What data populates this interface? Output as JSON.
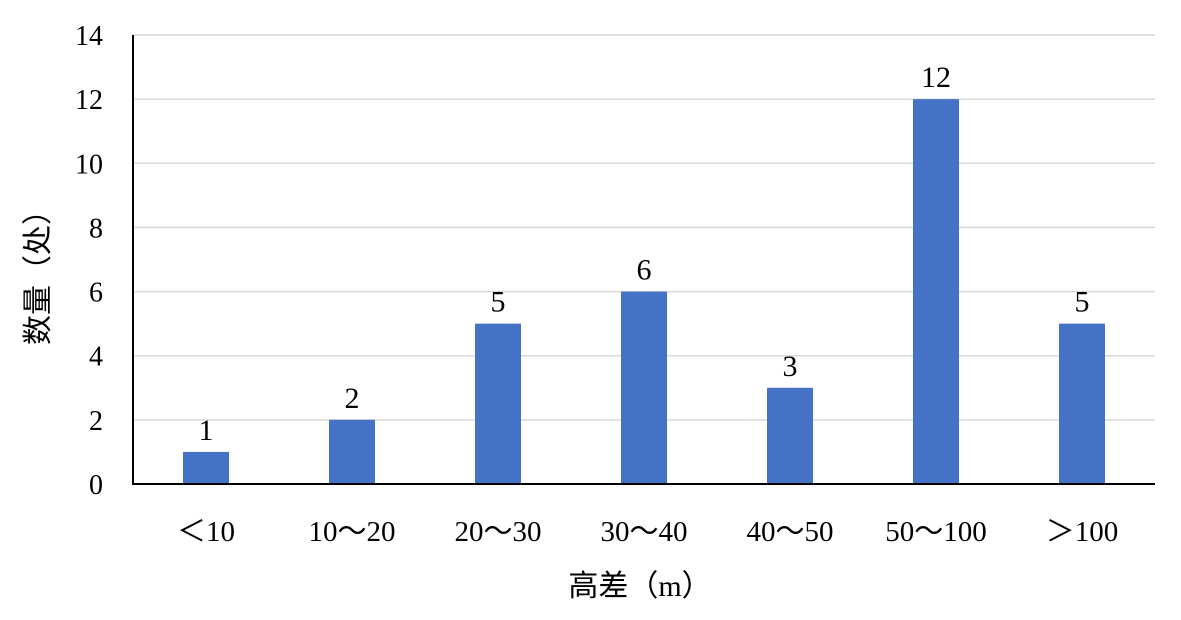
{
  "chart_data": {
    "type": "bar",
    "categories": [
      "＜10",
      "10～20",
      "20～30",
      "30～40",
      "40～50",
      "50～100",
      "＞100"
    ],
    "values": [
      1,
      2,
      5,
      6,
      3,
      12,
      5
    ],
    "data_labels": [
      "1",
      "2",
      "5",
      "6",
      "3",
      "12",
      "5"
    ],
    "title": "",
    "xlabel": "高差（m）",
    "ylabel": "数量（处）",
    "ylim": [
      0,
      14
    ],
    "yticks": [
      "0",
      "2",
      "4",
      "6",
      "8",
      "10",
      "12",
      "14"
    ],
    "grid": true,
    "legend": "none",
    "bar_color": "#4472C4"
  }
}
